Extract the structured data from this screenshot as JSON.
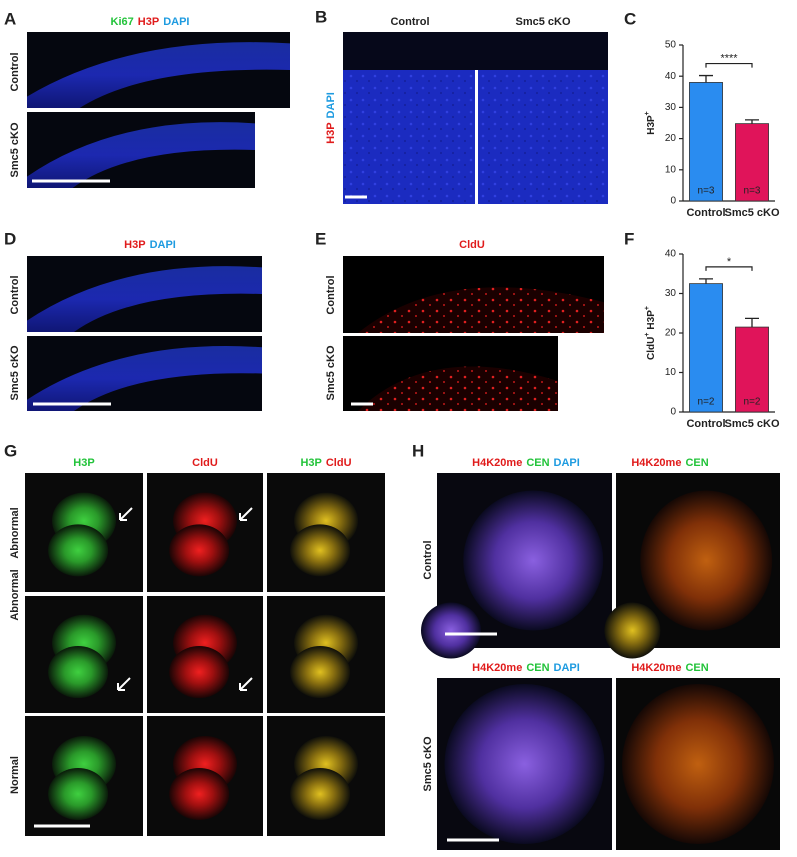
{
  "panels": {
    "A": {
      "letter": "A",
      "stain": [
        {
          "text": "Ki67",
          "color": "#22c33a"
        },
        {
          "text": "H3P",
          "color": "#e01b1b"
        },
        {
          "text": "DAPI",
          "color": "#1e9be0"
        }
      ],
      "rows": [
        "Control",
        "Smc5 cKO"
      ]
    },
    "B": {
      "letter": "B",
      "stain": [
        {
          "text": "H3P",
          "color": "#e01b1b"
        },
        {
          "text": "DAPI",
          "color": "#1e9be0"
        }
      ],
      "columns": [
        "Control",
        "Smc5 cKO"
      ]
    },
    "D": {
      "letter": "D",
      "stain": [
        {
          "text": "H3P",
          "color": "#e01b1b"
        },
        {
          "text": "DAPI",
          "color": "#1e9be0"
        }
      ],
      "rows": [
        "Control",
        "Smc5 cKO"
      ]
    },
    "E": {
      "letter": "E",
      "stain": [
        {
          "text": "CldU",
          "color": "#e01b1b"
        }
      ],
      "rows": [
        "Control",
        "Smc5 cKO"
      ]
    },
    "G": {
      "letter": "G",
      "columns": [
        [
          {
            "text": "H3P",
            "color": "#22c33a"
          }
        ],
        [
          {
            "text": "CldU",
            "color": "#e01b1b"
          }
        ],
        [
          {
            "text": "H3P",
            "color": "#22c33a"
          },
          {
            "text": "CldU",
            "color": "#e01b1b"
          }
        ]
      ],
      "rows": [
        "Abnormal",
        "Abnormal",
        "Normal"
      ]
    },
    "H": {
      "letter": "H",
      "columns": [
        [
          {
            "text": "H4K20me",
            "color": "#e01b1b"
          },
          {
            "text": "CEN",
            "color": "#22c33a"
          },
          {
            "text": "DAPI",
            "color": "#1e9be0"
          }
        ],
        [
          {
            "text": "H4K20me",
            "color": "#e01b1b"
          },
          {
            "text": "CEN",
            "color": "#22c33a"
          }
        ]
      ],
      "rows": [
        "Control",
        "Smc5 cKO"
      ]
    }
  },
  "chart_data": [
    {
      "type": "bar",
      "panel": "C",
      "ylabel": [
        {
          "text": "H3P"
        },
        {
          "text": "+",
          "sup": true
        }
      ],
      "categories": [
        "Control",
        "Smc5 cKO"
      ],
      "values": [
        38,
        24.8
      ],
      "errors": [
        2.2,
        1.2
      ],
      "colors": [
        "#2a8cf0",
        "#e0145a"
      ],
      "notes": [
        "n=3",
        "n=3"
      ],
      "significance": "****",
      "ylim": [
        0,
        50
      ],
      "yticks": [
        0,
        10,
        20,
        30,
        40,
        50
      ]
    },
    {
      "type": "bar",
      "panel": "F",
      "ylabel": [
        {
          "text": "CldU"
        },
        {
          "text": "+",
          "sup": true
        },
        {
          "text": "H3P"
        },
        {
          "text": "+",
          "sup": true
        }
      ],
      "categories": [
        "Control",
        "Smc5 cKO"
      ],
      "values": [
        32.5,
        21.5
      ],
      "errors": [
        1.2,
        2.2
      ],
      "colors": [
        "#2a8cf0",
        "#e0145a"
      ],
      "notes": [
        "n=2",
        "n=2"
      ],
      "significance": "*",
      "ylim": [
        0,
        40
      ],
      "yticks": [
        0,
        10,
        20,
        30,
        40
      ]
    }
  ]
}
